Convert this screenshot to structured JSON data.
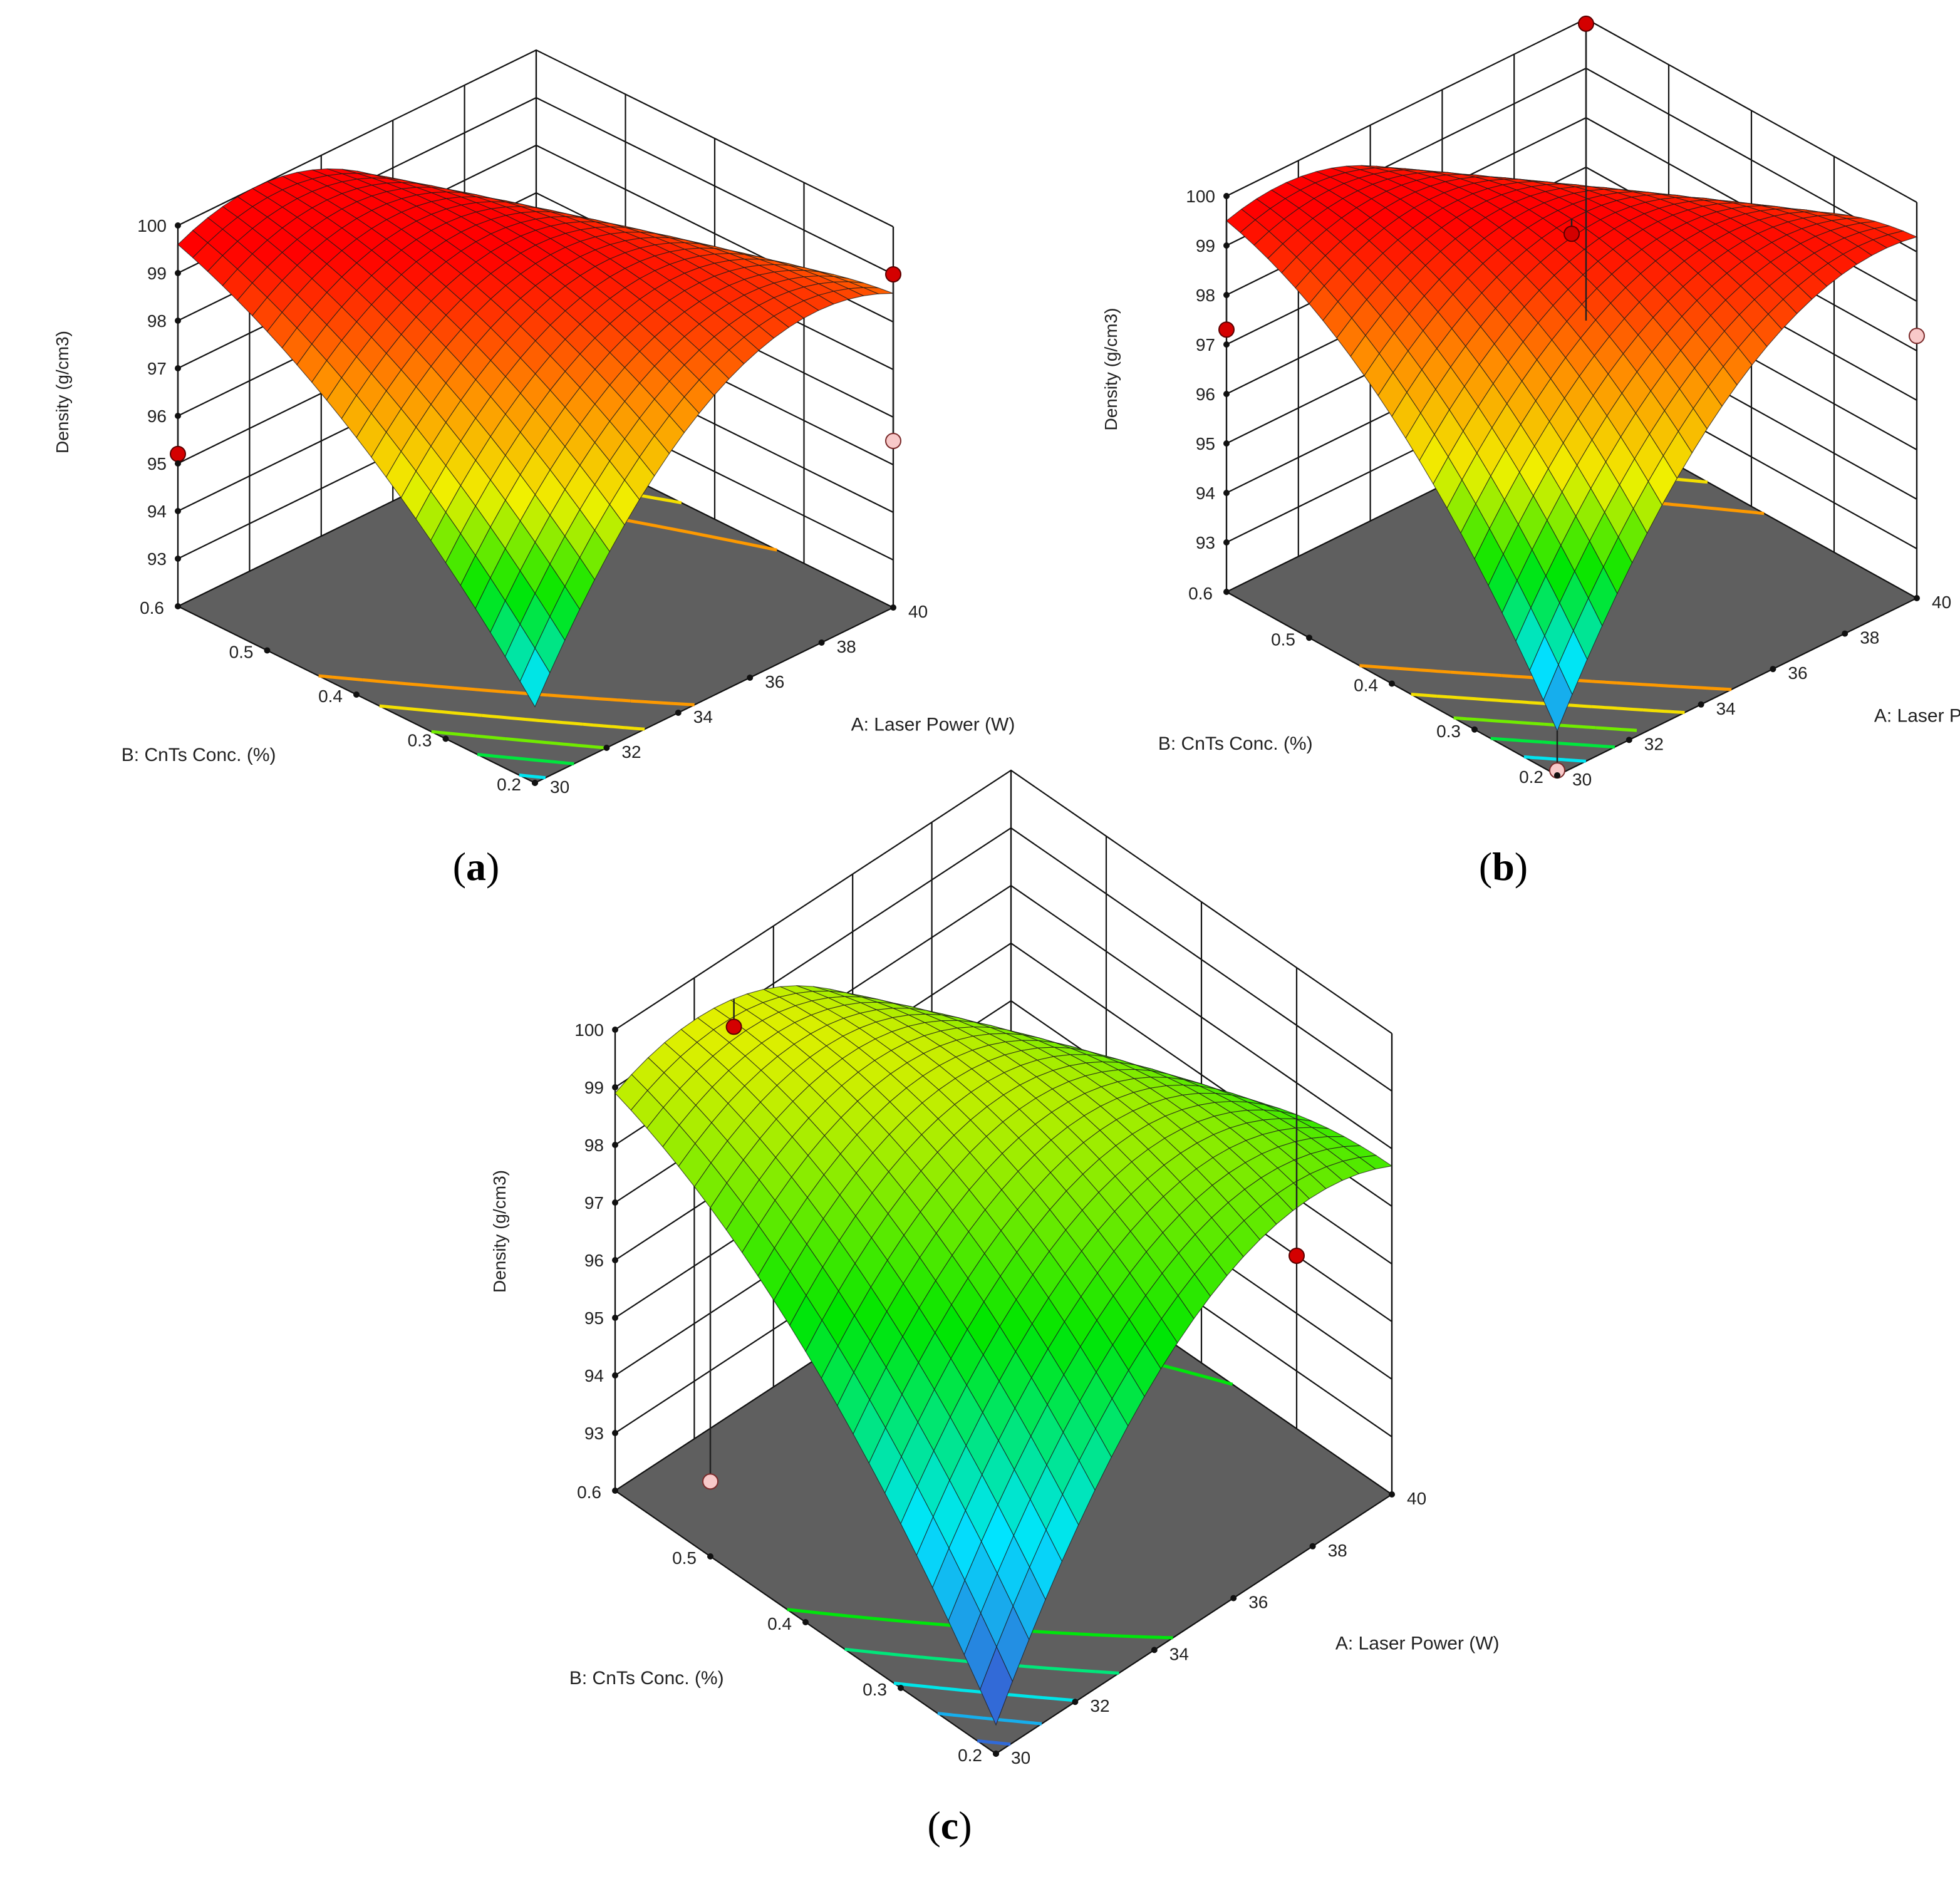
{
  "figure": {
    "panels": [
      {
        "id": "a",
        "label_prefix": "(",
        "label_letter": "a",
        "label_suffix": ")"
      },
      {
        "id": "b",
        "label_prefix": "(",
        "label_letter": "b",
        "label_suffix": ")"
      },
      {
        "id": "c",
        "label_prefix": "(",
        "label_letter": "c",
        "label_suffix": ")"
      }
    ]
  },
  "chart_data": [
    {
      "type": "surface3d",
      "panel": "a",
      "zlabel": "Density (g/cm3)",
      "xlabel": "A: Laser Power (W)",
      "ylabel": "B: CnTs Conc. (%)",
      "x_ticks": [
        "30",
        "32",
        "34",
        "36",
        "38",
        "40"
      ],
      "y_ticks": [
        "0.2",
        "0.3",
        "0.4",
        "0.5",
        "0.6"
      ],
      "z_ticks": [
        "93",
        "94",
        "95",
        "96",
        "97",
        "98",
        "99",
        "100"
      ],
      "xlim": [
        30,
        40
      ],
      "ylim": [
        0.2,
        0.6
      ],
      "zlim": [
        92,
        100
      ],
      "grid": true,
      "colormap": [
        "#3F48CC",
        "#00E5FF",
        "#00E600",
        "#F0F000",
        "#FF8C00",
        "#FF0000"
      ],
      "color_range": [
        92.5,
        99.6
      ],
      "surface_model": {
        "c": 99.6,
        "ax": 0.0,
        "ay": 0.5,
        "qx": -2.2,
        "qy": -0.8,
        "xy": -2.5,
        "x0": 35,
        "y0": 0.4
      },
      "design_points": [
        {
          "x": 30,
          "y": 0.6,
          "z": 95.2,
          "status": "above"
        },
        {
          "x": 40,
          "y": 0.2,
          "z": 99.0,
          "status": "above"
        },
        {
          "x": 40,
          "y": 0.2,
          "z": 95.5,
          "status": "below"
        }
      ],
      "contour_levels": [
        94,
        95,
        96,
        97,
        98
      ]
    },
    {
      "type": "surface3d",
      "panel": "b",
      "zlabel": "Density (g/cm3)",
      "xlabel": "A: Laser Power (W)",
      "ylabel": "B: CnTs Conc. (%)",
      "x_ticks": [
        "30",
        "32",
        "34",
        "36",
        "38",
        "40"
      ],
      "y_ticks": [
        "0.2",
        "0.3",
        "0.4",
        "0.5",
        "0.6"
      ],
      "z_ticks": [
        "93",
        "94",
        "95",
        "96",
        "97",
        "98",
        "99",
        "100"
      ],
      "xlim": [
        30,
        40
      ],
      "ylim": [
        0.2,
        0.6
      ],
      "zlim": [
        92,
        100
      ],
      "grid": true,
      "colormap": [
        "#3F48CC",
        "#00E5FF",
        "#00E600",
        "#F0F000",
        "#FF8C00",
        "#FF0000"
      ],
      "color_range": [
        92.5,
        99.6
      ],
      "surface_model": {
        "c": 99.6,
        "ax": 0.2,
        "ay": 0.3,
        "qx": -2.0,
        "qy": -1.2,
        "xy": -3.0,
        "x0": 35,
        "y0": 0.4
      },
      "design_points": [
        {
          "x": 30,
          "y": 0.6,
          "z": 97.3,
          "status": "above"
        },
        {
          "x": 35,
          "y": 0.4,
          "z": 99.3,
          "status": "above"
        },
        {
          "x": 40,
          "y": 0.6,
          "z": 99.9,
          "status": "above"
        },
        {
          "x": 30,
          "y": 0.2,
          "z": 92.1,
          "status": "below"
        },
        {
          "x": 40,
          "y": 0.2,
          "z": 97.3,
          "status": "below"
        }
      ],
      "contour_levels": [
        94,
        95,
        96,
        97,
        98
      ]
    },
    {
      "type": "surface3d",
      "panel": "c",
      "zlabel": "Density (g/cm3)",
      "xlabel": "A: Laser Power (W)",
      "ylabel": "B: CnTs Conc. (%)",
      "x_ticks": [
        "30",
        "32",
        "34",
        "36",
        "38",
        "40"
      ],
      "y_ticks": [
        "0.2",
        "0.3",
        "0.4",
        "0.5",
        "0.6"
      ],
      "z_ticks": [
        "93",
        "94",
        "95",
        "96",
        "97",
        "98",
        "99",
        "100"
      ],
      "xlim": [
        30,
        40
      ],
      "ylim": [
        0.2,
        0.6
      ],
      "zlim": [
        92,
        100
      ],
      "grid": true,
      "colormap": [
        "#3F48CC",
        "#00E5FF",
        "#00E600",
        "#F0F000",
        "#FF8C00",
        "#FF0000"
      ],
      "color_range": [
        92.5,
        104
      ],
      "surface_model": {
        "c": 98.9,
        "ax": 0.0,
        "ay": 0.6,
        "qx": -2.2,
        "qy": -1.0,
        "xy": -2.6,
        "x0": 35,
        "y0": 0.4
      },
      "design_points": [
        {
          "x": 33,
          "y": 0.6,
          "z": 98.7,
          "status": "above"
        },
        {
          "x": 40,
          "y": 0.3,
          "z": 95.0,
          "status": "above"
        },
        {
          "x": 30,
          "y": 0.5,
          "z": 93.3,
          "status": "below"
        }
      ],
      "contour_levels": [
        93,
        94,
        95,
        96,
        97
      ]
    }
  ]
}
